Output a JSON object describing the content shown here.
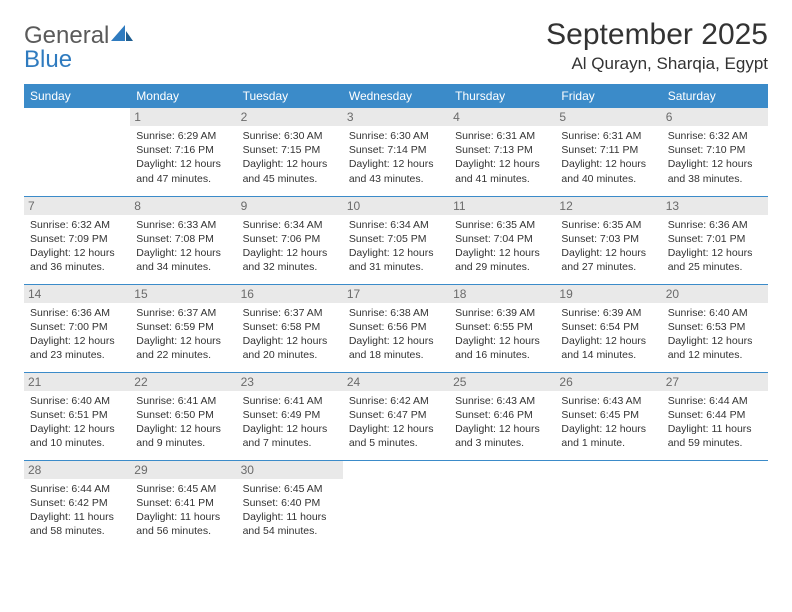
{
  "brand": {
    "part1": "General",
    "part2": "Blue"
  },
  "title": "September 2025",
  "location": "Al Qurayn, Sharqia, Egypt",
  "colors": {
    "header_bg": "#3b8bc9",
    "header_text": "#ffffff",
    "daynum_bg": "#e9e9e9",
    "daynum_text": "#6b6b6b",
    "border": "#3b8bc9",
    "brand_gray": "#5a5a5a",
    "brand_blue": "#2f7bbf"
  },
  "weekdays": [
    "Sunday",
    "Monday",
    "Tuesday",
    "Wednesday",
    "Thursday",
    "Friday",
    "Saturday"
  ],
  "weeks": [
    [
      null,
      {
        "d": "1",
        "sr": "6:29 AM",
        "ss": "7:16 PM",
        "dl": "12 hours and 47 minutes."
      },
      {
        "d": "2",
        "sr": "6:30 AM",
        "ss": "7:15 PM",
        "dl": "12 hours and 45 minutes."
      },
      {
        "d": "3",
        "sr": "6:30 AM",
        "ss": "7:14 PM",
        "dl": "12 hours and 43 minutes."
      },
      {
        "d": "4",
        "sr": "6:31 AM",
        "ss": "7:13 PM",
        "dl": "12 hours and 41 minutes."
      },
      {
        "d": "5",
        "sr": "6:31 AM",
        "ss": "7:11 PM",
        "dl": "12 hours and 40 minutes."
      },
      {
        "d": "6",
        "sr": "6:32 AM",
        "ss": "7:10 PM",
        "dl": "12 hours and 38 minutes."
      }
    ],
    [
      {
        "d": "7",
        "sr": "6:32 AM",
        "ss": "7:09 PM",
        "dl": "12 hours and 36 minutes."
      },
      {
        "d": "8",
        "sr": "6:33 AM",
        "ss": "7:08 PM",
        "dl": "12 hours and 34 minutes."
      },
      {
        "d": "9",
        "sr": "6:34 AM",
        "ss": "7:06 PM",
        "dl": "12 hours and 32 minutes."
      },
      {
        "d": "10",
        "sr": "6:34 AM",
        "ss": "7:05 PM",
        "dl": "12 hours and 31 minutes."
      },
      {
        "d": "11",
        "sr": "6:35 AM",
        "ss": "7:04 PM",
        "dl": "12 hours and 29 minutes."
      },
      {
        "d": "12",
        "sr": "6:35 AM",
        "ss": "7:03 PM",
        "dl": "12 hours and 27 minutes."
      },
      {
        "d": "13",
        "sr": "6:36 AM",
        "ss": "7:01 PM",
        "dl": "12 hours and 25 minutes."
      }
    ],
    [
      {
        "d": "14",
        "sr": "6:36 AM",
        "ss": "7:00 PM",
        "dl": "12 hours and 23 minutes."
      },
      {
        "d": "15",
        "sr": "6:37 AM",
        "ss": "6:59 PM",
        "dl": "12 hours and 22 minutes."
      },
      {
        "d": "16",
        "sr": "6:37 AM",
        "ss": "6:58 PM",
        "dl": "12 hours and 20 minutes."
      },
      {
        "d": "17",
        "sr": "6:38 AM",
        "ss": "6:56 PM",
        "dl": "12 hours and 18 minutes."
      },
      {
        "d": "18",
        "sr": "6:39 AM",
        "ss": "6:55 PM",
        "dl": "12 hours and 16 minutes."
      },
      {
        "d": "19",
        "sr": "6:39 AM",
        "ss": "6:54 PM",
        "dl": "12 hours and 14 minutes."
      },
      {
        "d": "20",
        "sr": "6:40 AM",
        "ss": "6:53 PM",
        "dl": "12 hours and 12 minutes."
      }
    ],
    [
      {
        "d": "21",
        "sr": "6:40 AM",
        "ss": "6:51 PM",
        "dl": "12 hours and 10 minutes."
      },
      {
        "d": "22",
        "sr": "6:41 AM",
        "ss": "6:50 PM",
        "dl": "12 hours and 9 minutes."
      },
      {
        "d": "23",
        "sr": "6:41 AM",
        "ss": "6:49 PM",
        "dl": "12 hours and 7 minutes."
      },
      {
        "d": "24",
        "sr": "6:42 AM",
        "ss": "6:47 PM",
        "dl": "12 hours and 5 minutes."
      },
      {
        "d": "25",
        "sr": "6:43 AM",
        "ss": "6:46 PM",
        "dl": "12 hours and 3 minutes."
      },
      {
        "d": "26",
        "sr": "6:43 AM",
        "ss": "6:45 PM",
        "dl": "12 hours and 1 minute."
      },
      {
        "d": "27",
        "sr": "6:44 AM",
        "ss": "6:44 PM",
        "dl": "11 hours and 59 minutes."
      }
    ],
    [
      {
        "d": "28",
        "sr": "6:44 AM",
        "ss": "6:42 PM",
        "dl": "11 hours and 58 minutes."
      },
      {
        "d": "29",
        "sr": "6:45 AM",
        "ss": "6:41 PM",
        "dl": "11 hours and 56 minutes."
      },
      {
        "d": "30",
        "sr": "6:45 AM",
        "ss": "6:40 PM",
        "dl": "11 hours and 54 minutes."
      },
      null,
      null,
      null,
      null
    ]
  ],
  "labels": {
    "sunrise": "Sunrise:",
    "sunset": "Sunset:",
    "daylight": "Daylight:"
  }
}
